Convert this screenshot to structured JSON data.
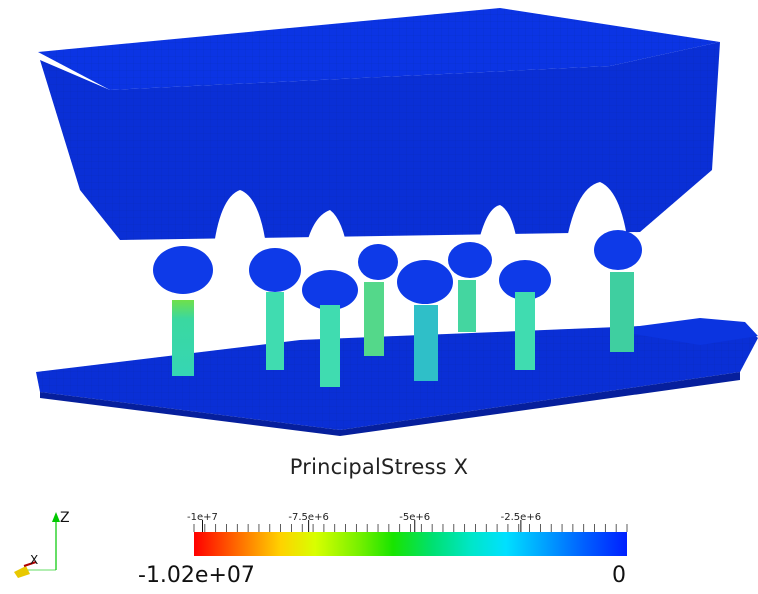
{
  "legend": {
    "title": "PrincipalStress X",
    "range_min": "-1.02e+07",
    "range_max": "0",
    "tick_labels": [
      "-1e+7",
      "-7.5e+6",
      "-5e+6",
      "-2.5e+6"
    ],
    "tick_values": [
      -10000000,
      -7500000,
      -5000000,
      -2500000
    ],
    "range": [
      -10200000,
      0
    ],
    "colormap": [
      "#ff0000",
      "#ffd200",
      "#18e400",
      "#00e0ff",
      "#0020ff"
    ]
  },
  "axes": {
    "z_label": "Z",
    "x_label": "X",
    "z_color": "#00c800",
    "x_color": "#e8c800"
  },
  "model": {
    "base_color": "#0a2fd6",
    "column_color": "#37d9a8"
  }
}
